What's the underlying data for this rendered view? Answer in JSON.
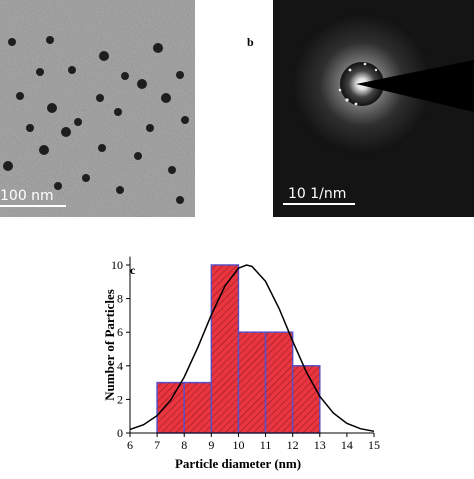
{
  "images": [
    {
      "scale_bar": "100 nm"
    },
    {
      "label": "b",
      "scale_bar": "10 1/nm"
    }
  ],
  "chart_data": {
    "type": "histogram",
    "label": "c",
    "x_label": "Particle diameter (nm)",
    "y_label": "Number of Particles",
    "bins": [
      7,
      8,
      9,
      10,
      11,
      12,
      13
    ],
    "values": [
      3,
      3,
      10,
      6,
      6,
      4
    ],
    "color": "#e8353f",
    "edge_color": "#5a50c8",
    "xlim": [
      6,
      15
    ],
    "ylim": [
      0,
      10.5
    ],
    "xticks": [
      6,
      7,
      8,
      9,
      10,
      11,
      12,
      13,
      14,
      15
    ],
    "yticks": [
      0,
      2,
      4,
      6,
      8,
      10
    ]
  }
}
